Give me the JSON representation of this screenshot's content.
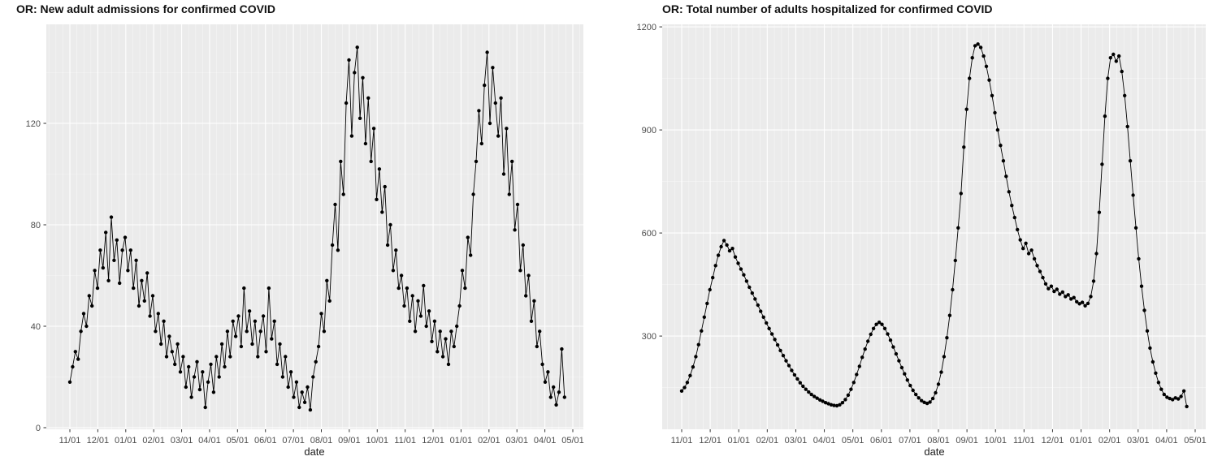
{
  "colors": {
    "figure_background": "#FFFFFF",
    "panel_background": "#EBEBEB",
    "grid_major": "#FFFFFF",
    "grid_minor": "rgba(255,255,255,0.55)",
    "series": "#000000",
    "axis_text": "#4D4D4D",
    "tick_mark": "#333333",
    "title_text": "#111111"
  },
  "chart_data": [
    {
      "type": "line",
      "title": "OR: New adult admissions for confirmed COVID",
      "xlabel": "date",
      "ylabel": "",
      "legend": "none",
      "grid": "on",
      "marker": "point",
      "x_tick_labels": [
        "11/01",
        "12/01",
        "01/01",
        "02/01",
        "03/01",
        "04/01",
        "05/01",
        "06/01",
        "07/01",
        "08/01",
        "09/01",
        "10/01",
        "11/01",
        "12/01",
        "01/01",
        "02/01",
        "03/01",
        "04/01",
        "05/01"
      ],
      "y_ticks": [
        0,
        40,
        80,
        120
      ],
      "y_minor_ticks": [
        20,
        60,
        100,
        140
      ],
      "ylim": [
        0,
        159
      ],
      "x_range_days": 546,
      "x_step_days": 3,
      "values": [
        18,
        24,
        30,
        27,
        38,
        45,
        40,
        52,
        48,
        62,
        55,
        70,
        63,
        77,
        58,
        83,
        66,
        74,
        57,
        70,
        75,
        62,
        70,
        55,
        66,
        48,
        58,
        50,
        61,
        44,
        52,
        38,
        45,
        33,
        42,
        28,
        36,
        30,
        25,
        33,
        22,
        28,
        16,
        24,
        12,
        20,
        26,
        15,
        22,
        8,
        18,
        25,
        14,
        28,
        20,
        33,
        24,
        38,
        28,
        42,
        36,
        44,
        32,
        55,
        38,
        46,
        33,
        42,
        28,
        38,
        44,
        30,
        55,
        35,
        42,
        25,
        33,
        20,
        28,
        16,
        22,
        12,
        18,
        8,
        14,
        10,
        16,
        7,
        20,
        26,
        32,
        45,
        38,
        58,
        50,
        72,
        88,
        70,
        105,
        92,
        128,
        145,
        115,
        140,
        150,
        122,
        138,
        112,
        130,
        105,
        118,
        90,
        102,
        85,
        95,
        72,
        80,
        62,
        70,
        55,
        60,
        48,
        55,
        42,
        52,
        38,
        50,
        44,
        56,
        40,
        46,
        34,
        42,
        30,
        38,
        28,
        35,
        25,
        38,
        32,
        40,
        48,
        62,
        55,
        75,
        68,
        92,
        105,
        125,
        112,
        135,
        148,
        120,
        142,
        128,
        115,
        130,
        100,
        118,
        92,
        105,
        78,
        88,
        62,
        72,
        52,
        60,
        42,
        50,
        32,
        38,
        25,
        18,
        22,
        12,
        16,
        9,
        14,
        31,
        12
      ]
    },
    {
      "type": "line",
      "title": "OR: Total number of adults hospitalized for confirmed COVID",
      "xlabel": "date",
      "ylabel": "",
      "legend": "none",
      "grid": "on",
      "marker": "point",
      "x_tick_labels": [
        "11/01",
        "12/01",
        "01/01",
        "02/01",
        "03/01",
        "04/01",
        "05/01",
        "06/01",
        "07/01",
        "08/01",
        "09/01",
        "10/01",
        "11/01",
        "12/01",
        "01/01",
        "02/01",
        "03/01",
        "04/01",
        "05/01"
      ],
      "y_ticks": [
        300,
        600,
        900,
        1200
      ],
      "y_minor_ticks": [
        150,
        450,
        750,
        1050
      ],
      "ylim": [
        28,
        1207
      ],
      "x_range_days": 546,
      "x_step_days": 3,
      "values": [
        140,
        150,
        165,
        185,
        210,
        240,
        275,
        315,
        355,
        395,
        435,
        470,
        505,
        535,
        560,
        578,
        565,
        548,
        555,
        530,
        512,
        495,
        478,
        460,
        442,
        425,
        408,
        390,
        372,
        355,
        338,
        322,
        306,
        290,
        274,
        258,
        243,
        228,
        214,
        200,
        187,
        175,
        164,
        154,
        145,
        137,
        130,
        124,
        119,
        114,
        110,
        106,
        103,
        100,
        98,
        97,
        100,
        106,
        115,
        128,
        145,
        165,
        188,
        212,
        238,
        262,
        285,
        305,
        322,
        334,
        340,
        334,
        322,
        306,
        288,
        268,
        248,
        228,
        208,
        190,
        172,
        156,
        142,
        130,
        120,
        112,
        107,
        104,
        108,
        118,
        135,
        160,
        195,
        240,
        295,
        360,
        435,
        520,
        615,
        715,
        850,
        960,
        1050,
        1110,
        1145,
        1150,
        1140,
        1115,
        1085,
        1045,
        1000,
        950,
        900,
        855,
        810,
        765,
        720,
        680,
        645,
        610,
        580,
        555,
        570,
        540,
        550,
        525,
        505,
        488,
        470,
        452,
        438,
        445,
        430,
        436,
        422,
        428,
        415,
        420,
        408,
        412,
        400,
        394,
        398,
        388,
        395,
        415,
        460,
        540,
        660,
        800,
        940,
        1050,
        1110,
        1120,
        1100,
        1115,
        1070,
        1000,
        910,
        810,
        710,
        615,
        525,
        445,
        375,
        315,
        265,
        225,
        192,
        165,
        145,
        130,
        122,
        118,
        115,
        120,
        117,
        124,
        140,
        95
      ]
    }
  ]
}
